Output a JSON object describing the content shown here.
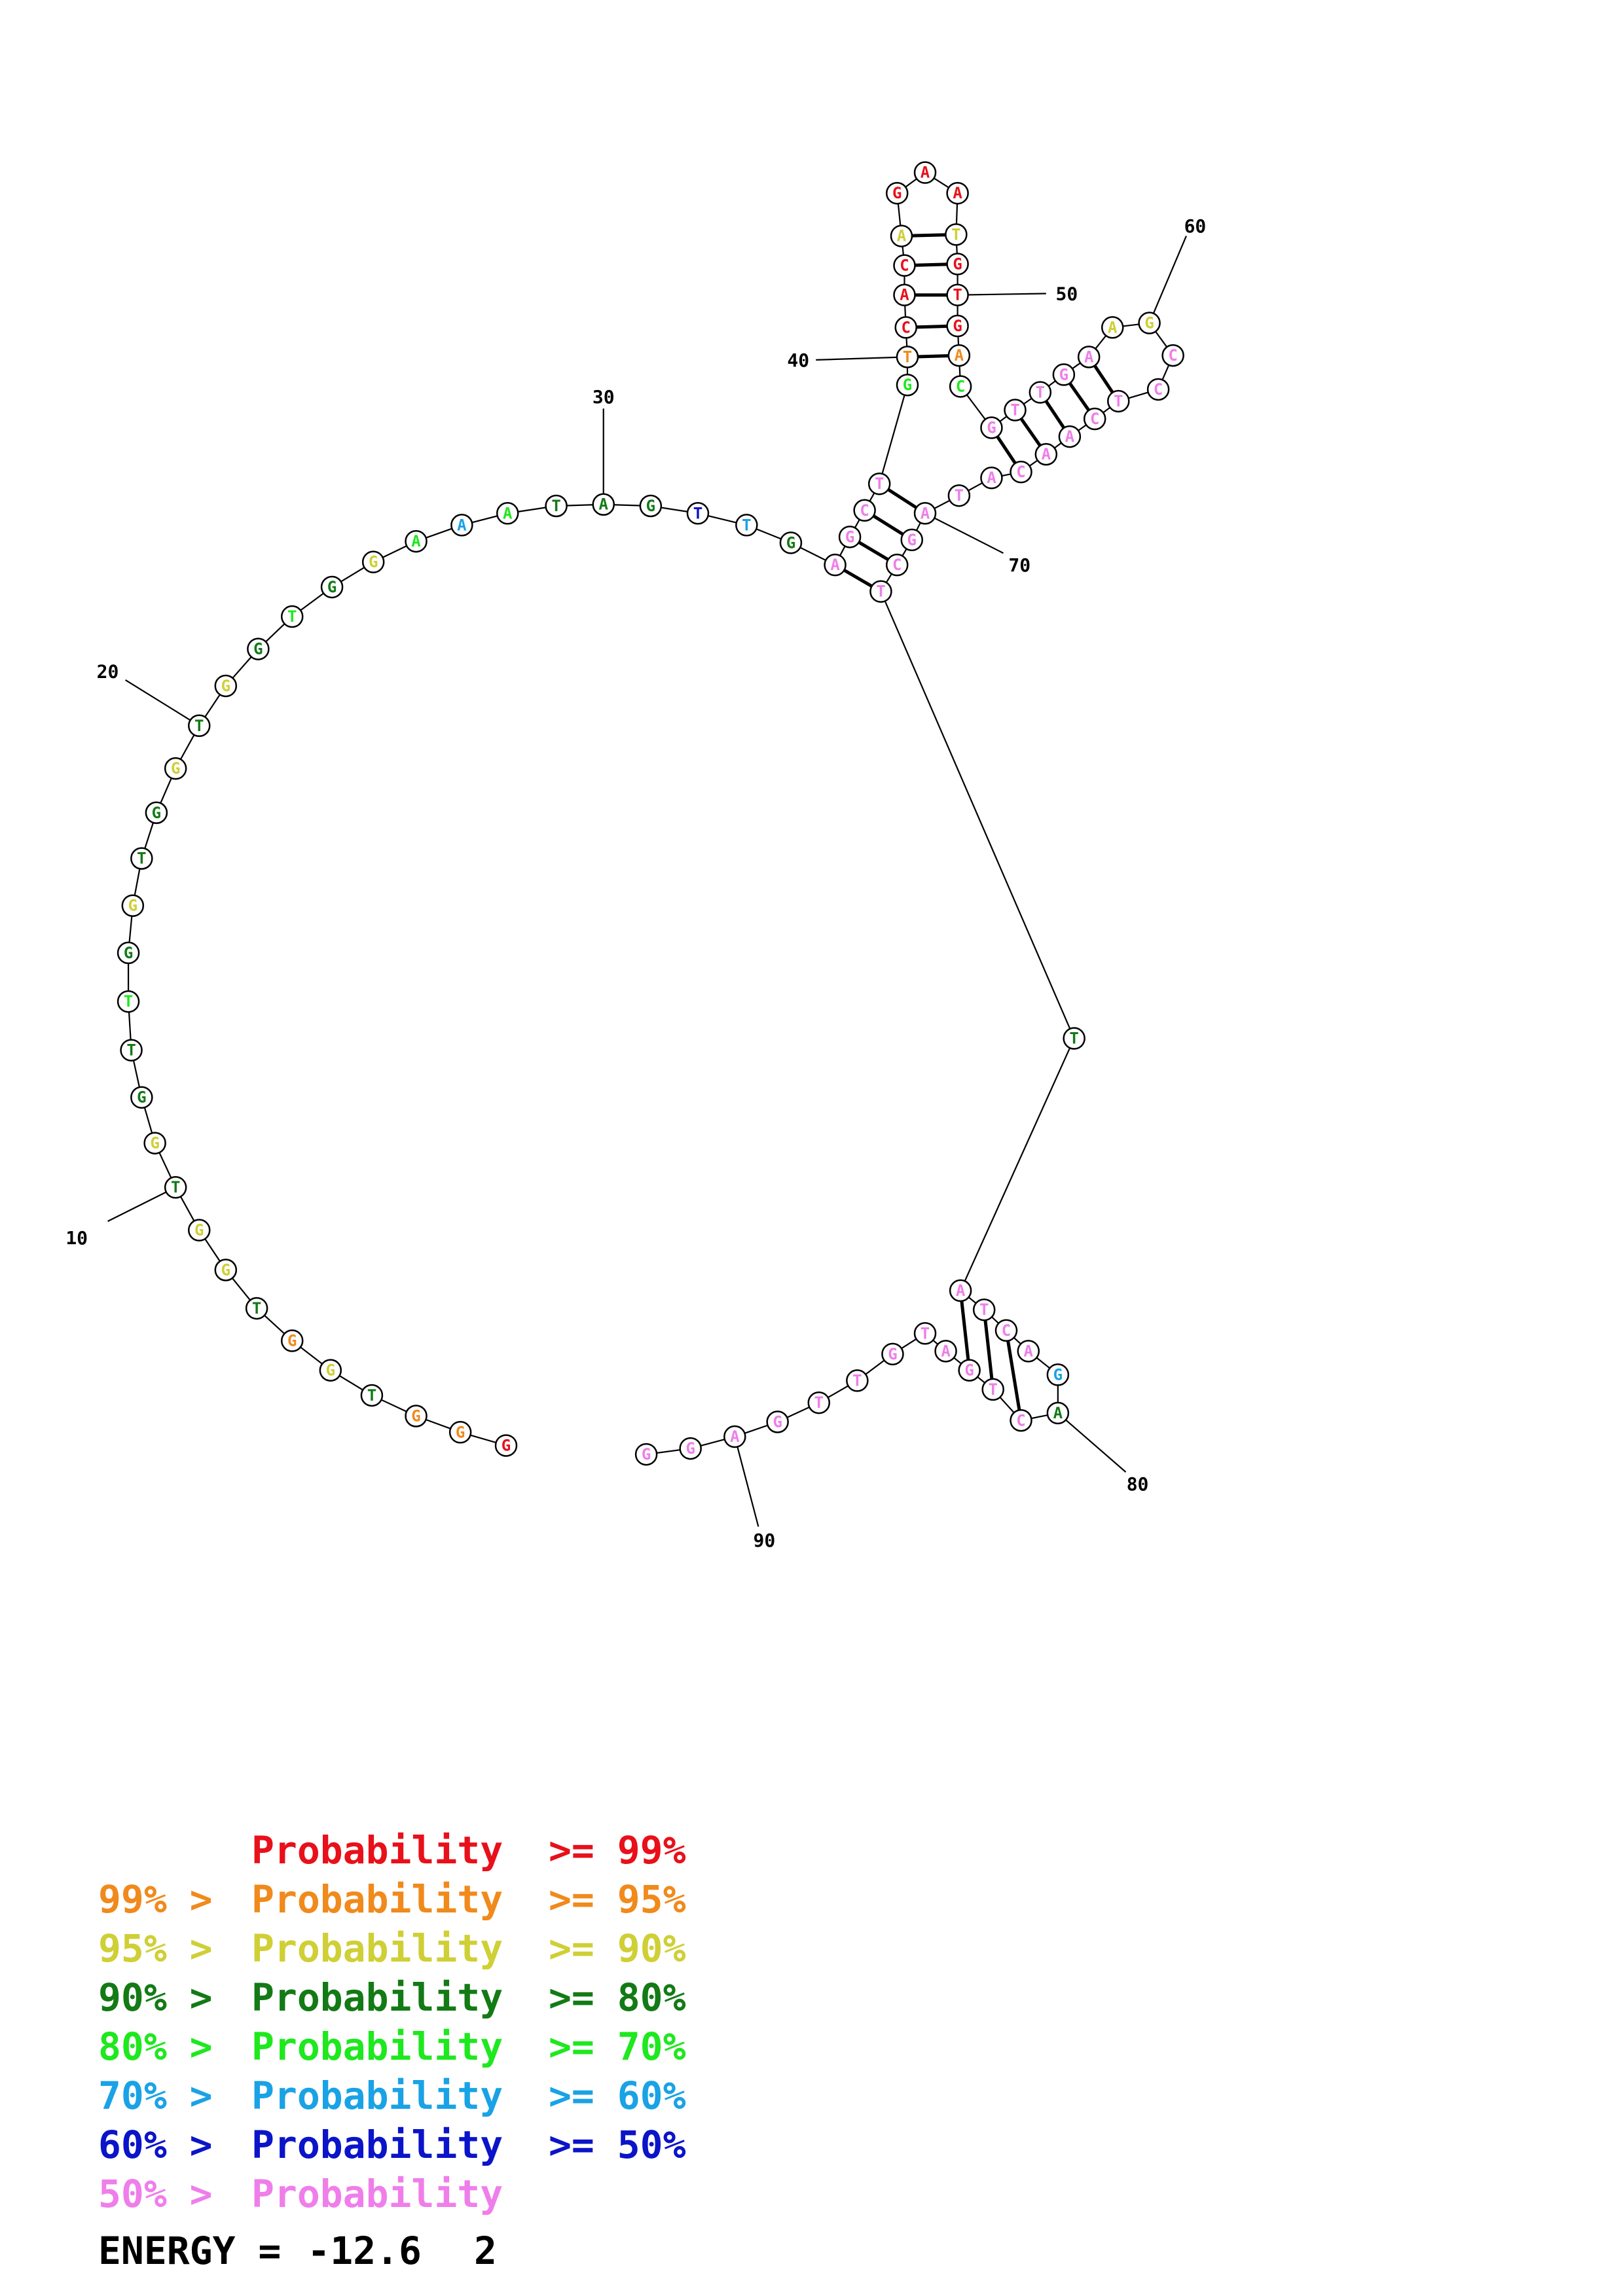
{
  "colors": {
    "p99": "#e8101a",
    "p95": "#f08a1c",
    "p90": "#cfcf36",
    "p80": "#137a16",
    "p70": "#1ee81e",
    "p60": "#1aa2e6",
    "p50": "#0b14c8",
    "p0": "#ef7eea"
  },
  "legend": [
    {
      "prefix": "",
      "mid": "Probability",
      "suffix": ">= 99%",
      "color": "p99"
    },
    {
      "prefix": "99% >",
      "mid": "Probability",
      "suffix": ">= 95%",
      "color": "p95"
    },
    {
      "prefix": "95% >",
      "mid": "Probability",
      "suffix": ">= 90%",
      "color": "p90"
    },
    {
      "prefix": "90% >",
      "mid": "Probability",
      "suffix": ">= 80%",
      "color": "p80"
    },
    {
      "prefix": "80% >",
      "mid": "Probability",
      "suffix": ">= 70%",
      "color": "p70"
    },
    {
      "prefix": "70% >",
      "mid": "Probability",
      "suffix": ">= 60%",
      "color": "p60"
    },
    {
      "prefix": "60% >",
      "mid": "Probability",
      "suffix": ">= 50%",
      "color": "p50"
    },
    {
      "prefix": "50% >",
      "mid": "Probability",
      "suffix": "",
      "color": "p0"
    }
  ],
  "energy": {
    "label": "ENERGY =",
    "value": "-12.6",
    "count": "2"
  },
  "sequence": [
    {
      "n": 1,
      "base": "G",
      "prob": "p99"
    },
    {
      "n": 2,
      "base": "G",
      "prob": "p95"
    },
    {
      "n": 3,
      "base": "G",
      "prob": "p95"
    },
    {
      "n": 4,
      "base": "T",
      "prob": "p80"
    },
    {
      "n": 5,
      "base": "G",
      "prob": "p90"
    },
    {
      "n": 6,
      "base": "G",
      "prob": "p95"
    },
    {
      "n": 7,
      "base": "T",
      "prob": "p80"
    },
    {
      "n": 8,
      "base": "G",
      "prob": "p90"
    },
    {
      "n": 9,
      "base": "G",
      "prob": "p90"
    },
    {
      "n": 10,
      "base": "T",
      "prob": "p80"
    },
    {
      "n": 11,
      "base": "G",
      "prob": "p90"
    },
    {
      "n": 12,
      "base": "G",
      "prob": "p80"
    },
    {
      "n": 13,
      "base": "T",
      "prob": "p80"
    },
    {
      "n": 14,
      "base": "T",
      "prob": "p70"
    },
    {
      "n": 15,
      "base": "G",
      "prob": "p80"
    },
    {
      "n": 16,
      "base": "G",
      "prob": "p90"
    },
    {
      "n": 17,
      "base": "T",
      "prob": "p80"
    },
    {
      "n": 18,
      "base": "G",
      "prob": "p80"
    },
    {
      "n": 19,
      "base": "G",
      "prob": "p90"
    },
    {
      "n": 20,
      "base": "T",
      "prob": "p80"
    },
    {
      "n": 21,
      "base": "G",
      "prob": "p90"
    },
    {
      "n": 22,
      "base": "G",
      "prob": "p80"
    },
    {
      "n": 23,
      "base": "T",
      "prob": "p70"
    },
    {
      "n": 24,
      "base": "G",
      "prob": "p80"
    },
    {
      "n": 25,
      "base": "G",
      "prob": "p90"
    },
    {
      "n": 26,
      "base": "A",
      "prob": "p70"
    },
    {
      "n": 27,
      "base": "A",
      "prob": "p60"
    },
    {
      "n": 28,
      "base": "A",
      "prob": "p70"
    },
    {
      "n": 29,
      "base": "T",
      "prob": "p80"
    },
    {
      "n": 30,
      "base": "A",
      "prob": "p80"
    },
    {
      "n": 31,
      "base": "G",
      "prob": "p80"
    },
    {
      "n": 32,
      "base": "T",
      "prob": "p50"
    },
    {
      "n": 33,
      "base": "T",
      "prob": "p60"
    },
    {
      "n": 34,
      "base": "G",
      "prob": "p80"
    },
    {
      "n": 35,
      "base": "A",
      "prob": "p0"
    },
    {
      "n": 36,
      "base": "G",
      "prob": "p0"
    },
    {
      "n": 37,
      "base": "C",
      "prob": "p0"
    },
    {
      "n": 38,
      "base": "T",
      "prob": "p0"
    },
    {
      "n": 39,
      "base": "G",
      "prob": "p70"
    },
    {
      "n": 40,
      "base": "T",
      "prob": "p95"
    },
    {
      "n": 41,
      "base": "C",
      "prob": "p99"
    },
    {
      "n": 42,
      "base": "A",
      "prob": "p99"
    },
    {
      "n": 43,
      "base": "C",
      "prob": "p99"
    },
    {
      "n": 44,
      "base": "A",
      "prob": "p90"
    },
    {
      "n": 45,
      "base": "G",
      "prob": "p99"
    },
    {
      "n": 46,
      "base": "A",
      "prob": "p99"
    },
    {
      "n": 47,
      "base": "A",
      "prob": "p99"
    },
    {
      "n": 48,
      "base": "T",
      "prob": "p90"
    },
    {
      "n": 49,
      "base": "G",
      "prob": "p99"
    },
    {
      "n": 50,
      "base": "T",
      "prob": "p99"
    },
    {
      "n": 51,
      "base": "G",
      "prob": "p99"
    },
    {
      "n": 52,
      "base": "A",
      "prob": "p95"
    },
    {
      "n": 53,
      "base": "C",
      "prob": "p70"
    },
    {
      "n": 54,
      "base": "G",
      "prob": "p0"
    },
    {
      "n": 55,
      "base": "T",
      "prob": "p0"
    },
    {
      "n": 56,
      "base": "T",
      "prob": "p0"
    },
    {
      "n": 57,
      "base": "G",
      "prob": "p0"
    },
    {
      "n": 58,
      "base": "A",
      "prob": "p0"
    },
    {
      "n": 59,
      "base": "A",
      "prob": "p90"
    },
    {
      "n": 60,
      "base": "G",
      "prob": "p90"
    },
    {
      "n": 61,
      "base": "C",
      "prob": "p0"
    },
    {
      "n": 62,
      "base": "C",
      "prob": "p0"
    },
    {
      "n": 63,
      "base": "T",
      "prob": "p0"
    },
    {
      "n": 64,
      "base": "C",
      "prob": "p0"
    },
    {
      "n": 65,
      "base": "A",
      "prob": "p0"
    },
    {
      "n": 66,
      "base": "A",
      "prob": "p0"
    },
    {
      "n": 67,
      "base": "C",
      "prob": "p0"
    },
    {
      "n": 68,
      "base": "A",
      "prob": "p0"
    },
    {
      "n": 69,
      "base": "T",
      "prob": "p0"
    },
    {
      "n": 70,
      "base": "A",
      "prob": "p0"
    },
    {
      "n": 71,
      "base": "G",
      "prob": "p0"
    },
    {
      "n": 72,
      "base": "C",
      "prob": "p0"
    },
    {
      "n": 73,
      "base": "T",
      "prob": "p0"
    },
    {
      "n": 74,
      "base": "T",
      "prob": "p80"
    },
    {
      "n": 75,
      "base": "A",
      "prob": "p0"
    },
    {
      "n": 76,
      "base": "T",
      "prob": "p0"
    },
    {
      "n": 77,
      "base": "C",
      "prob": "p0"
    },
    {
      "n": 78,
      "base": "A",
      "prob": "p0"
    },
    {
      "n": 79,
      "base": "G",
      "prob": "p60"
    },
    {
      "n": 80,
      "base": "A",
      "prob": "p80"
    },
    {
      "n": 81,
      "base": "C",
      "prob": "p0"
    },
    {
      "n": 82,
      "base": "T",
      "prob": "p0"
    },
    {
      "n": 83,
      "base": "G",
      "prob": "p0"
    },
    {
      "n": 84,
      "base": "A",
      "prob": "p0"
    },
    {
      "n": 85,
      "base": "T",
      "prob": "p0"
    },
    {
      "n": 86,
      "base": "G",
      "prob": "p0"
    },
    {
      "n": 87,
      "base": "T",
      "prob": "p0"
    },
    {
      "n": 88,
      "base": "T",
      "prob": "p0"
    },
    {
      "n": 89,
      "base": "G",
      "prob": "p0"
    },
    {
      "n": 90,
      "base": "A",
      "prob": "p0"
    },
    {
      "n": 91,
      "base": "G",
      "prob": "p0"
    },
    {
      "n": 92,
      "base": "G",
      "prob": "p0"
    }
  ],
  "pairs": [
    [
      35,
      73
    ],
    [
      36,
      72
    ],
    [
      37,
      71
    ],
    [
      38,
      70
    ],
    [
      40,
      52
    ],
    [
      41,
      51
    ],
    [
      42,
      50
    ],
    [
      43,
      49
    ],
    [
      44,
      48
    ],
    [
      54,
      67
    ],
    [
      55,
      66
    ],
    [
      56,
      65
    ],
    [
      57,
      64
    ],
    [
      58,
      63
    ],
    [
      75,
      83
    ],
    [
      76,
      82
    ],
    [
      77,
      81
    ]
  ],
  "position_labels": [
    {
      "label": "10",
      "n": 10
    },
    {
      "label": "20",
      "n": 20
    },
    {
      "label": "30",
      "n": 30
    },
    {
      "label": "40",
      "n": 40
    },
    {
      "label": "50",
      "n": 50
    },
    {
      "label": "60",
      "n": 60
    },
    {
      "label": "70",
      "n": 70
    },
    {
      "label": "80",
      "n": 80
    },
    {
      "label": "90",
      "n": 90
    }
  ]
}
